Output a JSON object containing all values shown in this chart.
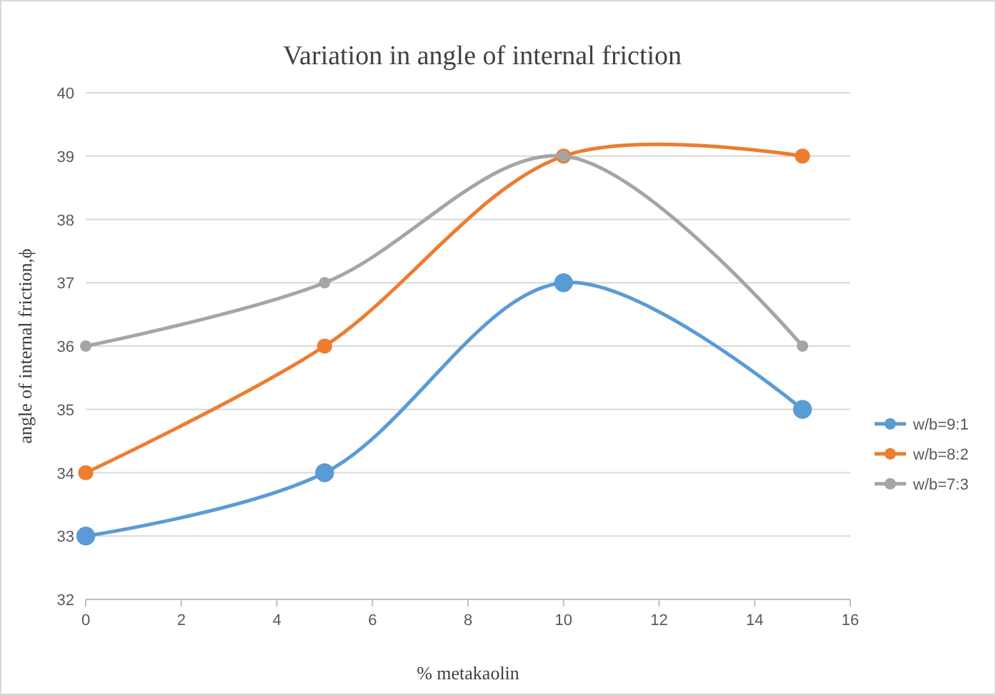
{
  "chart_data": {
    "type": "line",
    "title": "Variation in angle of internal friction",
    "xlabel": "% metakaolin",
    "ylabel": "angle of internal friction,ϕ",
    "x": [
      0,
      5,
      10,
      15
    ],
    "series": [
      {
        "name": "w/b=9:1",
        "color": "#5b9bd5",
        "values": [
          33,
          34,
          37,
          35
        ]
      },
      {
        "name": "w/b=8:2",
        "color": "#ed7d31",
        "values": [
          34,
          36,
          39,
          39
        ]
      },
      {
        "name": "w/b=7:3",
        "color": "#a5a5a5",
        "values": [
          36,
          37,
          39,
          36
        ]
      }
    ],
    "xlim": [
      0,
      16
    ],
    "xticks": [
      0,
      2,
      4,
      6,
      8,
      10,
      12,
      14,
      16
    ],
    "ylim": [
      32,
      40
    ],
    "yticks": [
      32,
      33,
      34,
      35,
      36,
      37,
      38,
      39,
      40
    ],
    "grid": "y",
    "legend": "right",
    "marker": "circle",
    "line_style": "solid"
  }
}
